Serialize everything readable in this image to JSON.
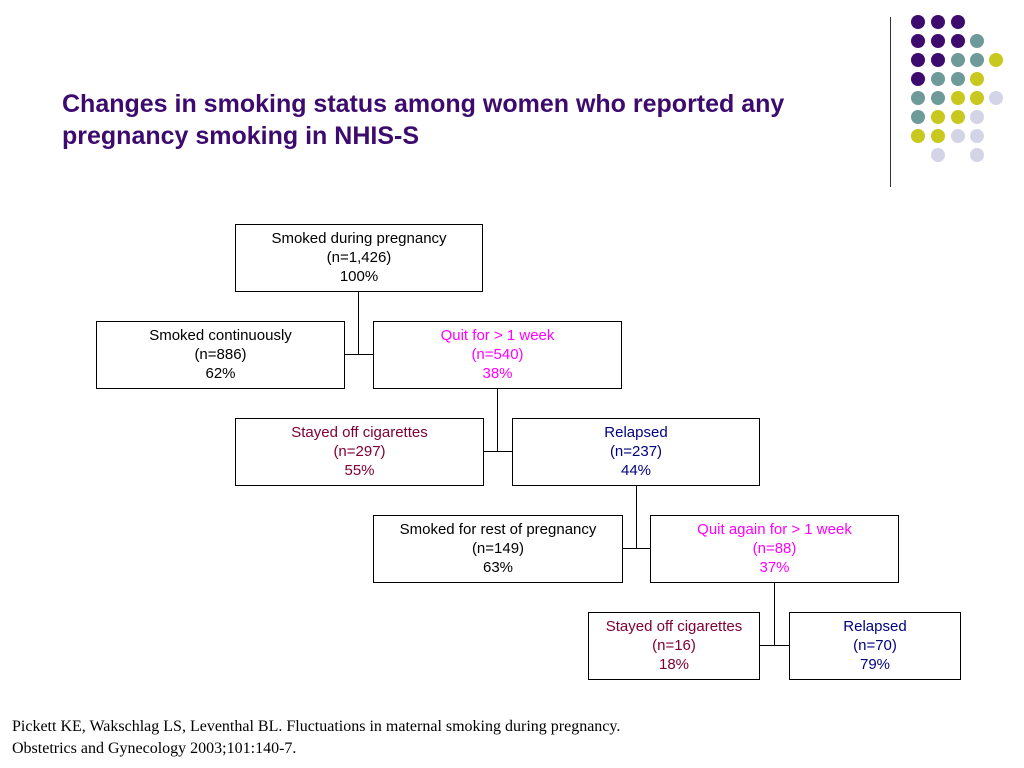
{
  "slide": {
    "title": "Changes in smoking status among women who reported any pregnancy smoking in NHIS-S",
    "citation": {
      "line1": "Pickett KE, Wakschlag LS, Leventhal BL.  Fluctuations in maternal smoking during pregnancy.",
      "line2": "Obstetrics and Gynecology 2003;101:140-7."
    }
  },
  "colors": {
    "title": "#3d0a6e",
    "black": "#000000",
    "magenta": "#ff00ff",
    "maroon": "#800033",
    "navy": "#000080",
    "dot_purple": "#3d0a6e",
    "dot_teal": "#6f9a9a",
    "dot_yellow": "#c8c81e",
    "dot_lavender": "#d4d4e8"
  },
  "flowchart": {
    "root": {
      "label": "Smoked during pregnancy",
      "n": "(n=1,426)",
      "pct": "100%"
    },
    "continuous": {
      "label": "Smoked continuously",
      "n": "(n=886)",
      "pct": "62%"
    },
    "quit": {
      "label": "Quit for > 1 week",
      "n": "(n=540)",
      "pct": "38%"
    },
    "stayed_off": {
      "label": "Stayed off cigarettes",
      "n": "(n=297)",
      "pct": "55%"
    },
    "relapsed": {
      "label": "Relapsed",
      "n": "(n=237)",
      "pct": "44%"
    },
    "smoked_rest": {
      "label": "Smoked for rest of pregnancy",
      "n": "(n=149)",
      "pct": "63%"
    },
    "quit_again": {
      "label": "Quit again for > 1 week",
      "n": "(n=88)",
      "pct": "37%"
    },
    "stayed_off_2": {
      "label": "Stayed off cigarettes",
      "n": "(n=16)",
      "pct": "18%"
    },
    "relapsed_2": {
      "label": "Relapsed",
      "n": "(n=70)",
      "pct": "79%"
    }
  }
}
